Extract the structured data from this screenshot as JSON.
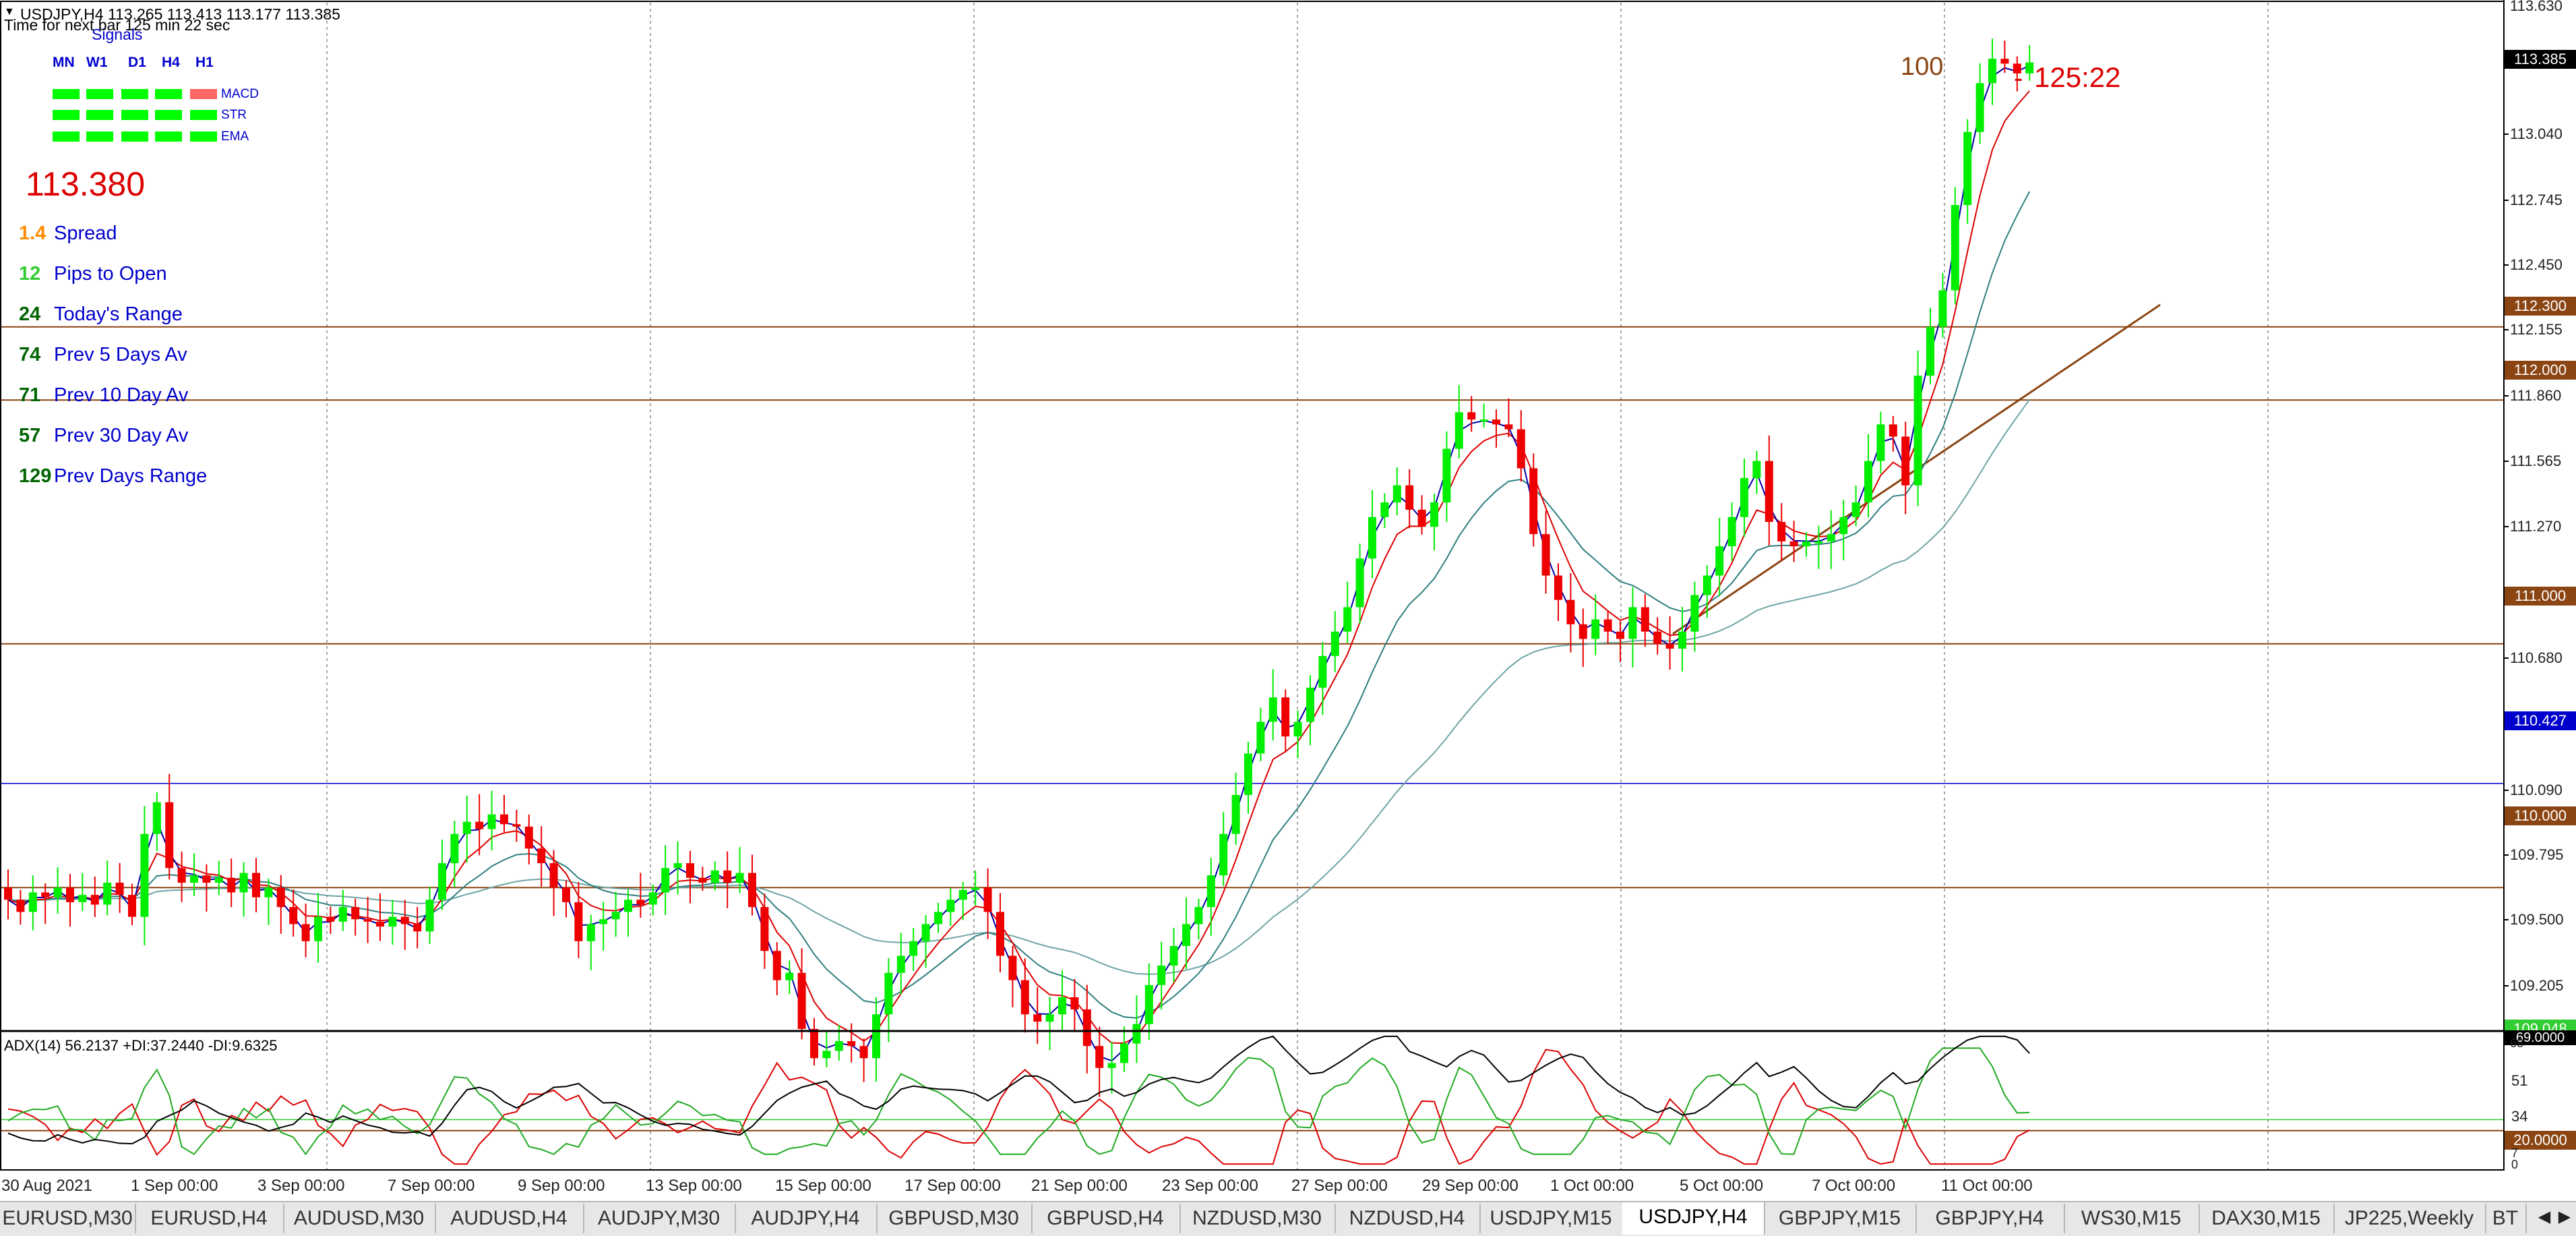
{
  "header": {
    "symbol_line": "USDJPY,H4  113.265 113.413 113.177 113.385",
    "timer_line": "Time for next bar 125 min 22 sec"
  },
  "signals": {
    "title": "Signals",
    "timeframes": [
      "MN",
      "W1",
      "D1",
      "H4",
      "H1"
    ],
    "rows": [
      {
        "label": "MACD",
        "states": [
          "up",
          "up",
          "up",
          "up",
          "down"
        ]
      },
      {
        "label": "STR",
        "states": [
          "up",
          "up",
          "up",
          "up",
          "up"
        ]
      },
      {
        "label": "EMA",
        "states": [
          "up",
          "up",
          "up",
          "up",
          "up"
        ]
      }
    ],
    "colors": {
      "up": "#00ff00",
      "down": "#ff6666"
    }
  },
  "info_panel": {
    "price": "113.380",
    "stats": [
      {
        "value": "1.4",
        "label": "Spread",
        "value_color": "#ff8c00"
      },
      {
        "value": "12",
        "label": "Pips to Open",
        "value_color": "#32cd32"
      },
      {
        "value": "24",
        "label": "Today's Range",
        "value_color": "#006400"
      },
      {
        "value": "74",
        "label": "Prev 5 Days Av",
        "value_color": "#006400"
      },
      {
        "value": "71",
        "label": "Prev 10 Day Av",
        "value_color": "#006400"
      },
      {
        "value": "57",
        "label": "Prev 30 Day Av",
        "value_color": "#006400"
      },
      {
        "value": "129",
        "label": "Prev Days Range",
        "value_color": "#006400"
      }
    ]
  },
  "chart_annotations": {
    "count": "100",
    "countdown": "125:22"
  },
  "price_axis": {
    "top_label": "113.630",
    "ticks": [
      "113.040",
      "112.745",
      "112.450",
      "112.155",
      "111.860",
      "111.565",
      "111.270",
      "110.680",
      "110.090",
      "109.795",
      "109.500",
      "109.205"
    ],
    "boxes": [
      {
        "value": "113.385",
        "color": "#000000"
      },
      {
        "value": "112.300",
        "color": "#8b4513"
      },
      {
        "value": "112.000",
        "color": "#8b4513"
      },
      {
        "value": "111.000",
        "color": "#8b4513"
      },
      {
        "value": "110.427",
        "color": "#0000cd"
      },
      {
        "value": "110.000",
        "color": "#8b4513"
      },
      {
        "value": "109.048",
        "color": "#32cd32"
      }
    ]
  },
  "indicator": {
    "label": "ADX(14) 56.2137 +DI:37.2440 -DI:9.6325",
    "top_label": "69.0000",
    "top_label_small": "68",
    "ticks": [
      "51",
      "34"
    ],
    "level_box": "20.0000",
    "bottom_small": [
      "7",
      "0"
    ]
  },
  "chart_data": {
    "type": "candlestick",
    "symbol": "USDJPY",
    "timeframe": "H4",
    "ylim": [
      108.95,
      113.63
    ],
    "x_labels": [
      "30 Aug 2021",
      "1 Sep 00:00",
      "3 Sep 00:00",
      "7 Sep 00:00",
      "9 Sep 00:00",
      "13 Sep 00:00",
      "15 Sep 00:00",
      "17 Sep 00:00",
      "21 Sep 00:00",
      "23 Sep 00:00",
      "27 Sep 00:00",
      "29 Sep 00:00",
      "1 Oct 00:00",
      "5 Oct 00:00",
      "7 Oct 00:00",
      "11 Oct 00:00"
    ],
    "horizontal_levels": [
      112.3,
      112.0,
      111.0,
      110.427,
      110.0,
      109.048
    ],
    "close_path": [
      109.95,
      109.9,
      109.98,
      109.96,
      110.0,
      109.94,
      109.97,
      109.93,
      110.02,
      109.97,
      109.88,
      110.22,
      110.35,
      110.08,
      110.02,
      110.05,
      110.02,
      110.04,
      109.98,
      110.06,
      109.96,
      110.0,
      109.92,
      109.85,
      109.78,
      109.88,
      109.86,
      109.92,
      109.87,
      109.86,
      109.84,
      109.88,
      109.85,
      109.82,
      109.95,
      110.1,
      110.22,
      110.27,
      110.24,
      110.3,
      110.26,
      110.25,
      110.16,
      110.1,
      110.0,
      109.94,
      109.78,
      109.85,
      109.87,
      109.9,
      109.95,
      109.93,
      109.98,
      110.08,
      110.1,
      110.04,
      110.02,
      110.07,
      110.02,
      110.06,
      109.92,
      109.74,
      109.62,
      109.65,
      109.42,
      109.3,
      109.33,
      109.37,
      109.35,
      109.3,
      109.48,
      109.65,
      109.72,
      109.78,
      109.85,
      109.9,
      109.95,
      109.99,
      110.0,
      109.9,
      109.72,
      109.62,
      109.48,
      109.45,
      109.48,
      109.55,
      109.5,
      109.35,
      109.26,
      109.28,
      109.36,
      109.44,
      109.6,
      109.68,
      109.76,
      109.85,
      109.92,
      110.05,
      110.22,
      110.38,
      110.55,
      110.68,
      110.78,
      110.62,
      110.68,
      110.82,
      110.95,
      111.05,
      111.15,
      111.35,
      111.52,
      111.58,
      111.65,
      111.55,
      111.48,
      111.58,
      111.8,
      111.95,
      111.92,
      111.92,
      111.9,
      111.88,
      111.72,
      111.45,
      111.28,
      111.18,
      111.08,
      111.02,
      111.1,
      111.05,
      111.02,
      111.15,
      111.05,
      111.0,
      110.98,
      111.05,
      111.2,
      111.28,
      111.4,
      111.52,
      111.68,
      111.75,
      111.5,
      111.42,
      111.4,
      111.42,
      111.42,
      111.45,
      111.52,
      111.58,
      111.75,
      111.9,
      111.85,
      111.65,
      112.1,
      112.3,
      112.45,
      112.8,
      113.1,
      113.3,
      113.4,
      113.38,
      113.34,
      113.385
    ],
    "overlays": [
      "fast MA",
      "medium MA",
      "slow MA",
      "long MA",
      "trend line"
    ],
    "adx": {
      "ylim": [
        0,
        69
      ],
      "level": 20,
      "adx": 56.2137,
      "plus_di": 37.244,
      "minus_di": 9.6325
    }
  },
  "tabs": {
    "items": [
      "EURUSD,M30",
      "EURUSD,H4",
      "AUDUSD,M30",
      "AUDUSD,H4",
      "AUDJPY,M30",
      "AUDJPY,H4",
      "GBPUSD,M30",
      "GBPUSD,H4",
      "NZDUSD,M30",
      "NZDUSD,H4",
      "USDJPY,M15",
      "USDJPY,H4",
      "GBPJPY,M15",
      "GBPJPY,H4",
      "WS30,M15",
      "DAX30,M15",
      "JP225,Weekly",
      "BT"
    ],
    "active_index": 11,
    "nav_left": "◀",
    "nav_right": "▶"
  },
  "colors": {
    "bull": "#00ee00",
    "bear": "#ee0000",
    "level": "#8b4513",
    "blue_level": "#0000cd",
    "grid": "#888888",
    "ma_blue": "#0000aa",
    "ma_red": "#dd0000",
    "ma_teal": "#2f7f7f",
    "ma_long": "#6fa5a5"
  }
}
